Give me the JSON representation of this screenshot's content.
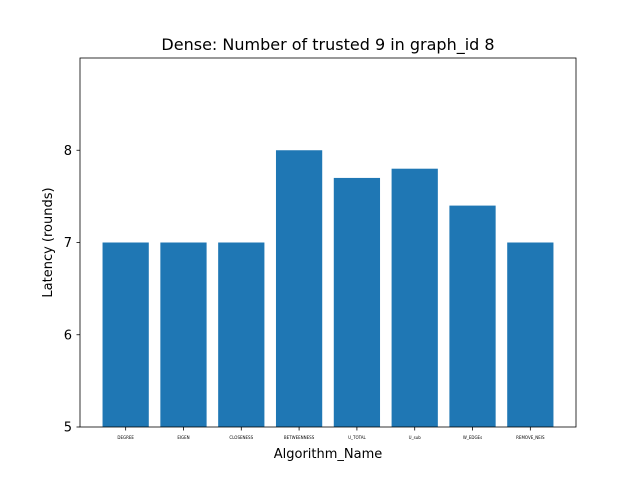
{
  "chart_data": {
    "type": "bar",
    "title": "Dense: Number of trusted 9 in graph_id 8",
    "xlabel": "Algorithm_Name",
    "ylabel": "Latency (rounds)",
    "categories": [
      "DEGREE",
      "EIGEN",
      "CLOSENESS",
      "BETWEENNESS",
      "U_TOTAL",
      "U_sub",
      "W_EDGEs",
      "REMOVE_NEIS"
    ],
    "values": [
      7,
      7,
      7,
      8,
      7.7,
      7.8,
      7.4,
      7
    ],
    "ylim": [
      5,
      9
    ],
    "yticks": [
      5,
      6,
      7,
      8
    ],
    "bar_color": "#1f77b4",
    "grid": false
  }
}
